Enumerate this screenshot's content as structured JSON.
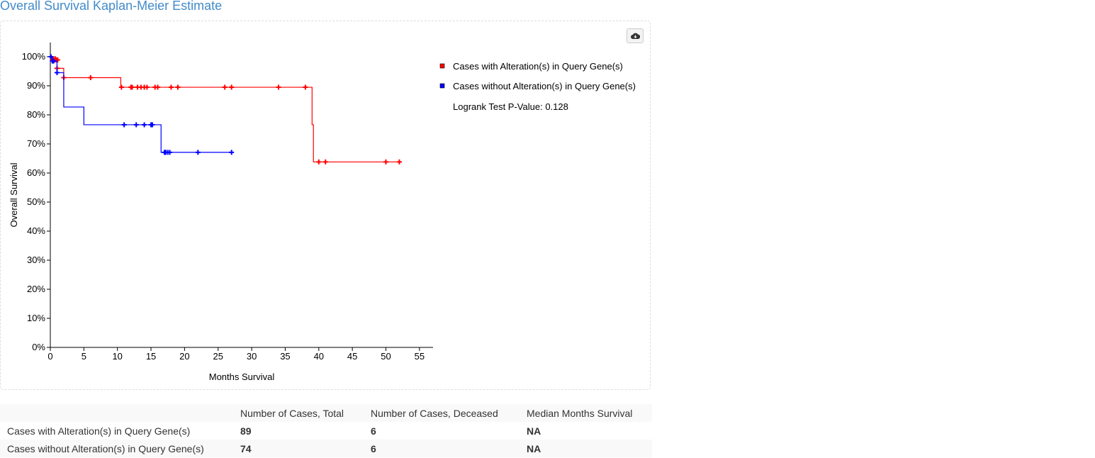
{
  "page": {
    "title": "Overall Survival Kaplan-Meier Estimate"
  },
  "chart_data": {
    "type": "line",
    "subtype": "kaplan-meier step plot",
    "xlabel": "Months Survival",
    "ylabel": "Overall Survival",
    "xlim": [
      0,
      57
    ],
    "ylim": [
      0,
      100
    ],
    "x_ticks": [
      0,
      5,
      10,
      15,
      20,
      25,
      30,
      35,
      40,
      45,
      50,
      55
    ],
    "y_ticks": [
      0,
      10,
      20,
      30,
      40,
      50,
      60,
      70,
      80,
      90,
      100
    ],
    "y_tick_format": "percent",
    "grid": false,
    "legend_position": "right",
    "annotation": "Logrank Test P-Value: 0.128",
    "series": [
      {
        "name": "Cases with Alteration(s) in Query Gene(s)",
        "color": "#ff0000",
        "steps": [
          [
            0,
            100
          ],
          [
            0.8,
            98.9
          ],
          [
            1.0,
            96
          ],
          [
            2.0,
            92.8
          ],
          [
            10.5,
            89.5
          ],
          [
            39,
            76.6
          ],
          [
            39.2,
            63.8
          ],
          [
            52,
            63.8
          ]
        ],
        "censored": [
          [
            0.3,
            98.9
          ],
          [
            0.5,
            98.9
          ],
          [
            0.7,
            98.9
          ],
          [
            0.9,
            98.9
          ],
          [
            1.1,
            98.9
          ],
          [
            1.0,
            96
          ],
          [
            2.0,
            92.8
          ],
          [
            6.0,
            92.8
          ],
          [
            10.6,
            89.5
          ],
          [
            12.0,
            89.5
          ],
          [
            12.2,
            89.5
          ],
          [
            13.0,
            89.5
          ],
          [
            13.5,
            89.5
          ],
          [
            14.0,
            89.5
          ],
          [
            14.4,
            89.5
          ],
          [
            15.6,
            89.5
          ],
          [
            16.0,
            89.5
          ],
          [
            18.0,
            89.5
          ],
          [
            19.0,
            89.5
          ],
          [
            26.0,
            89.5
          ],
          [
            27.0,
            89.5
          ],
          [
            34.0,
            89.5
          ],
          [
            38.0,
            89.5
          ],
          [
            40.0,
            63.8
          ],
          [
            41.0,
            63.8
          ],
          [
            50.0,
            63.8
          ],
          [
            52.0,
            63.8
          ]
        ]
      },
      {
        "name": "Cases without Alteration(s) in Query Gene(s)",
        "color": "#0000ff",
        "steps": [
          [
            0,
            100
          ],
          [
            0.3,
            98.5
          ],
          [
            1.0,
            94.5
          ],
          [
            2.0,
            82.7
          ],
          [
            5.0,
            76.6
          ],
          [
            16.5,
            67.1
          ],
          [
            27,
            67.1
          ]
        ],
        "censored": [
          [
            0.1,
            100
          ],
          [
            0.3,
            98.5
          ],
          [
            0.5,
            98.5
          ],
          [
            1.0,
            94.5
          ],
          [
            11.0,
            76.6
          ],
          [
            12.8,
            76.6
          ],
          [
            14.0,
            76.6
          ],
          [
            15.0,
            76.6
          ],
          [
            15.2,
            76.6
          ],
          [
            17.0,
            67.1
          ],
          [
            17.2,
            67.1
          ],
          [
            17.5,
            67.1
          ],
          [
            17.8,
            67.1
          ],
          [
            22.0,
            67.1
          ],
          [
            27.0,
            67.1
          ]
        ]
      }
    ]
  },
  "legend": {
    "items": [
      {
        "label": "Cases with Alteration(s) in Query Gene(s)",
        "color": "#ff0000"
      },
      {
        "label": "Cases without Alteration(s) in Query Gene(s)",
        "color": "#0000ff"
      }
    ]
  },
  "toolbar": {
    "download_icon": "cloud-download-icon"
  },
  "table": {
    "headers": [
      "",
      "Number of Cases, Total",
      "Number of Cases, Deceased",
      "Median Months Survival"
    ],
    "rows": [
      [
        "Cases with Alteration(s) in Query Gene(s)",
        "89",
        "6",
        "NA"
      ],
      [
        "Cases without Alteration(s) in Query Gene(s)",
        "74",
        "6",
        "NA"
      ]
    ]
  }
}
